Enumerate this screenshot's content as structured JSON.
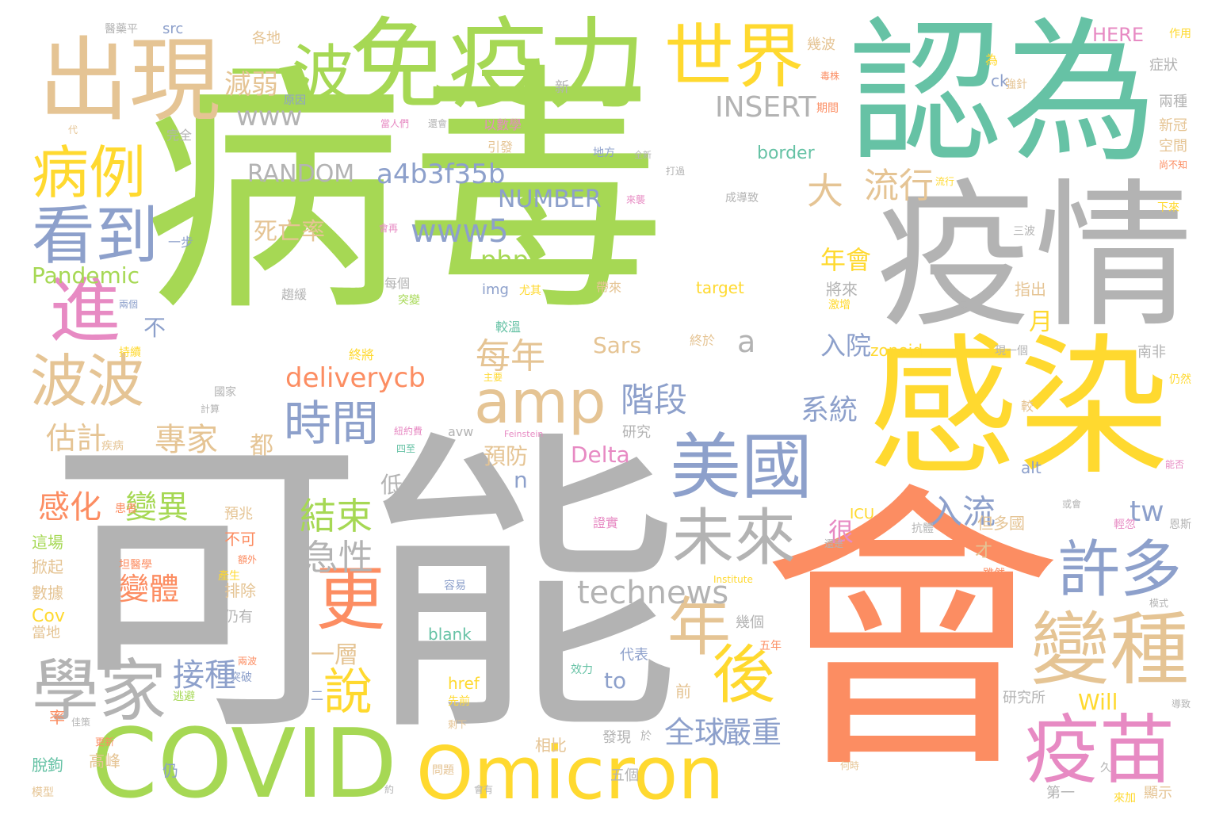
{
  "palette": {
    "green": "#a6d854",
    "grey": "#b3b3b3",
    "orange": "#fc8d62",
    "yellow": "#ffd92f",
    "teal": "#66c2a5",
    "tan": "#e5c494",
    "blue": "#8da0cb",
    "pink": "#e78ac3"
  },
  "words": [
    {
      "text": "病毒",
      "color": "green"
    },
    {
      "text": "可能",
      "color": "grey"
    },
    {
      "text": "會",
      "color": "orange"
    },
    {
      "text": "認為",
      "color": "teal"
    },
    {
      "text": "疫情",
      "color": "grey"
    },
    {
      "text": "感染",
      "color": "yellow"
    },
    {
      "text": "免疫力",
      "color": "green"
    },
    {
      "text": "出現",
      "color": "tan"
    },
    {
      "text": "世界",
      "color": "yellow"
    },
    {
      "text": "一波",
      "color": "green"
    },
    {
      "text": "COVID",
      "color": "green"
    },
    {
      "text": "Omicron",
      "color": "yellow"
    },
    {
      "text": "美國",
      "color": "blue"
    },
    {
      "text": "變種",
      "color": "tan"
    },
    {
      "text": "疫苗",
      "color": "pink"
    },
    {
      "text": "學家",
      "color": "grey"
    },
    {
      "text": "未來",
      "color": "grey"
    },
    {
      "text": "許多",
      "color": "blue"
    },
    {
      "text": "病例",
      "color": "yellow"
    },
    {
      "text": "看到",
      "color": "blue"
    },
    {
      "text": "進",
      "color": "pink"
    },
    {
      "text": "波波",
      "color": "tan"
    },
    {
      "text": "amp",
      "color": "tan"
    },
    {
      "text": "時間",
      "color": "blue"
    },
    {
      "text": "年",
      "color": "tan"
    },
    {
      "text": "後",
      "color": "yellow"
    },
    {
      "text": "更",
      "color": "orange"
    },
    {
      "text": "說",
      "color": "yellow"
    },
    {
      "text": "流行",
      "color": "tan"
    },
    {
      "text": "大",
      "color": "tan"
    },
    {
      "text": "INSERT",
      "color": "grey"
    },
    {
      "text": "RANDOM",
      "color": "grey"
    },
    {
      "text": "a4b3f35b",
      "color": "blue"
    },
    {
      "text": "NUMBER",
      "color": "blue"
    },
    {
      "text": "www5",
      "color": "blue"
    },
    {
      "text": "www",
      "color": "grey"
    },
    {
      "text": "減弱",
      "color": "tan"
    },
    {
      "text": "死亡率",
      "color": "tan"
    },
    {
      "text": "php",
      "color": "green"
    },
    {
      "text": "Pandemic",
      "color": "green"
    },
    {
      "text": "每年",
      "color": "tan"
    },
    {
      "text": "deliverycb",
      "color": "orange"
    },
    {
      "text": "專家",
      "color": "tan"
    },
    {
      "text": "階段",
      "color": "blue"
    },
    {
      "text": "估計",
      "color": "tan"
    },
    {
      "text": "technews",
      "color": "grey"
    },
    {
      "text": "結束",
      "color": "green"
    },
    {
      "text": "急性",
      "color": "grey"
    },
    {
      "text": "感化",
      "color": "orange"
    },
    {
      "text": "變異",
      "color": "green"
    },
    {
      "text": "變體",
      "color": "orange"
    },
    {
      "text": "接種",
      "color": "blue"
    },
    {
      "text": "入流",
      "color": "blue"
    },
    {
      "text": "全球",
      "color": "blue"
    },
    {
      "text": "嚴重",
      "color": "blue"
    },
    {
      "text": "Delta",
      "color": "pink"
    },
    {
      "text": "Sars",
      "color": "tan"
    },
    {
      "text": "系統",
      "color": "blue"
    },
    {
      "text": "年會",
      "color": "yellow"
    },
    {
      "text": "入院",
      "color": "blue"
    },
    {
      "text": "tw",
      "color": "blue"
    },
    {
      "text": "a",
      "color": "grey"
    },
    {
      "text": "月",
      "color": "yellow"
    },
    {
      "text": "to",
      "color": "blue"
    },
    {
      "text": "Will",
      "color": "yellow"
    },
    {
      "text": "n",
      "color": "blue"
    },
    {
      "text": "很",
      "color": "pink"
    },
    {
      "text": "都",
      "color": "tan"
    },
    {
      "text": "不",
      "color": "blue"
    },
    {
      "text": "低",
      "color": "grey"
    },
    {
      "text": "一層",
      "color": "tan"
    },
    {
      "text": "預防",
      "color": "tan"
    },
    {
      "text": "HERE",
      "color": "pink"
    },
    {
      "text": "border",
      "color": "teal"
    },
    {
      "text": "zoneid",
      "color": "yellow"
    },
    {
      "text": "target",
      "color": "yellow"
    },
    {
      "text": "blank",
      "color": "teal"
    },
    {
      "text": "href",
      "color": "yellow"
    },
    {
      "text": "img",
      "color": "blue"
    },
    {
      "text": "alt",
      "color": "blue"
    },
    {
      "text": "ICU",
      "color": "yellow"
    },
    {
      "text": "Cov",
      "color": "yellow"
    },
    {
      "text": "src",
      "color": "blue"
    },
    {
      "text": "avw",
      "color": "grey"
    },
    {
      "text": "ck",
      "color": "blue"
    },
    {
      "text": "數據",
      "color": "tan"
    },
    {
      "text": "當地",
      "color": "tan"
    },
    {
      "text": "掀起",
      "color": "tan"
    },
    {
      "text": "這場",
      "color": "green"
    },
    {
      "text": "排除",
      "color": "tan"
    },
    {
      "text": "仍有",
      "color": "grey"
    },
    {
      "text": "不可",
      "color": "orange"
    },
    {
      "text": "預兆",
      "color": "tan"
    },
    {
      "text": "高峰",
      "color": "tan"
    },
    {
      "text": "仍",
      "color": "blue"
    },
    {
      "text": "相比",
      "color": "tan"
    },
    {
      "text": "代表",
      "color": "blue"
    },
    {
      "text": "發現",
      "color": "grey"
    },
    {
      "text": "前",
      "color": "tan"
    },
    {
      "text": "五個",
      "color": "grey"
    },
    {
      "text": "幾個",
      "color": "grey"
    },
    {
      "text": "研究",
      "color": "grey"
    },
    {
      "text": "證實",
      "color": "pink"
    },
    {
      "text": "但多國",
      "color": "tan"
    },
    {
      "text": "才",
      "color": "tan"
    },
    {
      "text": "指出",
      "color": "tan"
    },
    {
      "text": "將來",
      "color": "grey"
    },
    {
      "text": "南非",
      "color": "grey"
    },
    {
      "text": "研究所",
      "color": "grey"
    },
    {
      "text": "第一",
      "color": "grey"
    },
    {
      "text": "顯示",
      "color": "tan"
    },
    {
      "text": "兩種",
      "color": "grey"
    },
    {
      "text": "新冠",
      "color": "tan"
    },
    {
      "text": "空間",
      "color": "tan"
    },
    {
      "text": "症狀",
      "color": "grey"
    },
    {
      "text": "作用",
      "color": "yellow"
    },
    {
      "text": "幾波",
      "color": "tan"
    },
    {
      "text": "各地",
      "color": "tan"
    },
    {
      "text": "原因",
      "color": "blue"
    },
    {
      "text": "以數學",
      "color": "pink"
    },
    {
      "text": "引發",
      "color": "tan"
    },
    {
      "text": "一步",
      "color": "blue"
    },
    {
      "text": "完全",
      "color": "grey"
    },
    {
      "text": "國家",
      "color": "grey"
    },
    {
      "text": "計算",
      "color": "grey"
    },
    {
      "text": "趨緩",
      "color": "grey"
    },
    {
      "text": "每個",
      "color": "grey"
    },
    {
      "text": "帶來",
      "color": "tan"
    },
    {
      "text": "較溫",
      "color": "teal"
    },
    {
      "text": "終於",
      "color": "tan"
    },
    {
      "text": "終將",
      "color": "yellow"
    },
    {
      "text": "地方",
      "color": "blue"
    },
    {
      "text": "成導致",
      "color": "grey"
    },
    {
      "text": "率",
      "color": "orange"
    },
    {
      "text": "脫鉤",
      "color": "teal"
    },
    {
      "text": "模型",
      "color": "tan"
    },
    {
      "text": "新",
      "color": "grey"
    },
    {
      "text": "代",
      "color": "tan"
    },
    {
      "text": "Institute",
      "color": "yellow"
    },
    {
      "text": "Feinstein",
      "color": "pink"
    },
    {
      "text": "容易",
      "color": "blue"
    },
    {
      "text": "問題",
      "color": "tan"
    },
    {
      "text": "先前",
      "color": "yellow"
    },
    {
      "text": "效力",
      "color": "teal"
    },
    {
      "text": "五年",
      "color": "orange"
    },
    {
      "text": "抗體",
      "color": "grey"
    },
    {
      "text": "三波",
      "color": "grey"
    },
    {
      "text": "下來",
      "color": "yellow"
    },
    {
      "text": "仍然",
      "color": "yellow"
    },
    {
      "text": "導致",
      "color": "grey"
    },
    {
      "text": "模式",
      "color": "grey"
    },
    {
      "text": "坦醫學",
      "color": "orange"
    },
    {
      "text": "疾病",
      "color": "tan"
    },
    {
      "text": "持續",
      "color": "yellow"
    },
    {
      "text": "兩個",
      "color": "blue"
    },
    {
      "text": "突變",
      "color": "green"
    },
    {
      "text": "尤其",
      "color": "yellow"
    },
    {
      "text": "現一個",
      "color": "grey"
    },
    {
      "text": "較",
      "color": "tan"
    },
    {
      "text": "強針",
      "color": "tan"
    },
    {
      "text": "期間",
      "color": "orange"
    },
    {
      "text": "毒株",
      "color": "orange"
    },
    {
      "text": "雖然",
      "color": "orange"
    },
    {
      "text": "輕忽",
      "color": "pink"
    },
    {
      "text": "恩斯",
      "color": "grey"
    },
    {
      "text": "還是",
      "color": "grey"
    },
    {
      "text": "產生",
      "color": "yellow"
    },
    {
      "text": "額外",
      "color": "orange"
    },
    {
      "text": "逃避",
      "color": "green"
    },
    {
      "text": "突破",
      "color": "blue"
    },
    {
      "text": "兩波",
      "color": "orange"
    },
    {
      "text": "剩下",
      "color": "tan"
    },
    {
      "text": "何時",
      "color": "tan"
    },
    {
      "text": "患者",
      "color": "orange"
    },
    {
      "text": "紐約費",
      "color": "pink"
    },
    {
      "text": "四至",
      "color": "teal"
    },
    {
      "text": "主要",
      "color": "yellow"
    },
    {
      "text": "打過",
      "color": "grey"
    },
    {
      "text": "來襲",
      "color": "pink"
    },
    {
      "text": "全新",
      "color": "grey"
    },
    {
      "text": "還會",
      "color": "grey"
    },
    {
      "text": "當人們",
      "color": "pink"
    },
    {
      "text": "會再",
      "color": "pink"
    },
    {
      "text": "或會",
      "color": "grey"
    },
    {
      "text": "會有",
      "color": "grey"
    },
    {
      "text": "尚不知",
      "color": "orange"
    },
    {
      "text": "能否",
      "color": "pink"
    },
    {
      "text": "流行",
      "color": "yellow"
    },
    {
      "text": "呈",
      "color": "grey"
    },
    {
      "text": "激增",
      "color": "yellow"
    },
    {
      "text": "為",
      "color": "yellow"
    },
    {
      "text": "佳策",
      "color": "grey"
    },
    {
      "text": "二",
      "color": "blue"
    },
    {
      "text": "於",
      "color": "grey"
    },
    {
      "text": "約",
      "color": "grey"
    },
    {
      "text": "久",
      "color": "grey"
    },
    {
      "text": "更新",
      "color": "orange"
    },
    {
      "text": "來加",
      "color": "yellow"
    },
    {
      "text": "醫藥平",
      "color": "grey"
    }
  ]
}
